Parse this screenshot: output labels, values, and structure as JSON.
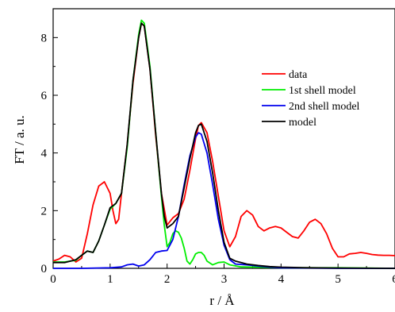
{
  "chart_data": {
    "type": "line",
    "xlabel": "r / Å",
    "ylabel": "FT / a. u.",
    "xlim": [
      0,
      6
    ],
    "ylim": [
      0,
      9
    ],
    "xticks": [
      "0",
      "1",
      "2",
      "3",
      "4",
      "5",
      "6"
    ],
    "yticks": [
      "0",
      "2",
      "4",
      "6",
      "8"
    ],
    "legend_position": "top-right",
    "series": [
      {
        "name": "data",
        "color": "#ff0000",
        "x": [
          0,
          0.1,
          0.2,
          0.3,
          0.4,
          0.5,
          0.6,
          0.7,
          0.8,
          0.9,
          1.0,
          1.05,
          1.1,
          1.15,
          1.2,
          1.3,
          1.4,
          1.5,
          1.55,
          1.6,
          1.7,
          1.8,
          1.9,
          2.0,
          2.1,
          2.2,
          2.3,
          2.4,
          2.5,
          2.55,
          2.6,
          2.7,
          2.8,
          2.9,
          3.0,
          3.1,
          3.2,
          3.3,
          3.4,
          3.5,
          3.6,
          3.7,
          3.8,
          3.9,
          4.0,
          4.1,
          4.2,
          4.3,
          4.4,
          4.5,
          4.6,
          4.7,
          4.8,
          4.9,
          5.0,
          5.1,
          5.2,
          5.3,
          5.4,
          5.5,
          5.6,
          5.7,
          5.8,
          5.9,
          6.0
        ],
        "y": [
          0.25,
          0.32,
          0.45,
          0.4,
          0.22,
          0.35,
          1.2,
          2.2,
          2.85,
          3.0,
          2.6,
          2.0,
          1.55,
          1.7,
          2.6,
          4.3,
          6.4,
          8.0,
          8.5,
          8.4,
          6.9,
          4.6,
          2.6,
          1.5,
          1.75,
          1.9,
          2.4,
          3.4,
          4.5,
          4.95,
          5.05,
          4.7,
          3.7,
          2.5,
          1.3,
          0.75,
          1.1,
          1.8,
          2.0,
          1.85,
          1.45,
          1.3,
          1.4,
          1.45,
          1.4,
          1.25,
          1.1,
          1.05,
          1.3,
          1.6,
          1.7,
          1.55,
          1.2,
          0.7,
          0.4,
          0.4,
          0.5,
          0.52,
          0.55,
          0.52,
          0.48,
          0.46,
          0.45,
          0.45,
          0.44
        ]
      },
      {
        "name": "1st shell model",
        "color": "#00ee00",
        "x": [
          0,
          0.2,
          0.4,
          0.5,
          0.6,
          0.7,
          0.8,
          0.9,
          1.0,
          1.1,
          1.2,
          1.3,
          1.4,
          1.5,
          1.55,
          1.6,
          1.7,
          1.8,
          1.9,
          1.95,
          2.0,
          2.05,
          2.1,
          2.15,
          2.2,
          2.25,
          2.3,
          2.35,
          2.4,
          2.45,
          2.5,
          2.55,
          2.6,
          2.65,
          2.7,
          2.8,
          2.9,
          3.0,
          3.1,
          3.3,
          3.6,
          4.0,
          5.0,
          6.0
        ],
        "y": [
          0.22,
          0.22,
          0.28,
          0.45,
          0.6,
          0.55,
          0.95,
          1.5,
          2.05,
          2.25,
          2.6,
          4.2,
          6.5,
          8.1,
          8.6,
          8.5,
          7.0,
          4.7,
          2.5,
          1.5,
          0.75,
          0.9,
          1.2,
          1.3,
          1.25,
          1.05,
          0.7,
          0.25,
          0.15,
          0.3,
          0.5,
          0.55,
          0.55,
          0.45,
          0.25,
          0.12,
          0.2,
          0.22,
          0.12,
          0.05,
          0.04,
          0.02,
          0.02,
          0.0
        ]
      },
      {
        "name": "2nd shell model",
        "color": "#0000ee",
        "x": [
          0,
          0.5,
          1.0,
          1.2,
          1.3,
          1.4,
          1.5,
          1.6,
          1.7,
          1.8,
          1.9,
          2.0,
          2.1,
          2.2,
          2.3,
          2.4,
          2.5,
          2.55,
          2.6,
          2.7,
          2.8,
          2.9,
          3.0,
          3.1,
          3.2,
          3.4,
          3.6,
          3.8,
          4.0,
          4.5,
          5.0,
          6.0
        ],
        "y": [
          0.0,
          0.0,
          0.02,
          0.05,
          0.12,
          0.15,
          0.08,
          0.12,
          0.3,
          0.55,
          0.6,
          0.62,
          1.0,
          1.8,
          2.9,
          3.9,
          4.55,
          4.7,
          4.65,
          4.0,
          2.9,
          1.7,
          0.8,
          0.3,
          0.15,
          0.12,
          0.08,
          0.04,
          0.02,
          0.01,
          0.0,
          0.0
        ]
      },
      {
        "name": "model",
        "color": "#000000",
        "x": [
          0,
          0.2,
          0.4,
          0.5,
          0.6,
          0.7,
          0.8,
          0.9,
          1.0,
          1.1,
          1.2,
          1.3,
          1.4,
          1.5,
          1.55,
          1.6,
          1.7,
          1.8,
          1.9,
          1.95,
          2.0,
          2.1,
          2.2,
          2.3,
          2.4,
          2.5,
          2.55,
          2.6,
          2.7,
          2.8,
          2.9,
          3.0,
          3.1,
          3.2,
          3.4,
          3.6,
          3.8,
          4.0,
          4.5,
          5.0,
          6.0
        ],
        "y": [
          0.2,
          0.2,
          0.3,
          0.45,
          0.6,
          0.55,
          0.95,
          1.5,
          2.1,
          2.25,
          2.6,
          4.3,
          6.5,
          8.0,
          8.5,
          8.4,
          6.9,
          4.7,
          2.6,
          1.8,
          1.4,
          1.55,
          1.8,
          2.8,
          3.8,
          4.7,
          4.95,
          5.0,
          4.4,
          3.3,
          2.0,
          0.9,
          0.35,
          0.25,
          0.15,
          0.1,
          0.06,
          0.04,
          0.02,
          0.01,
          0.0
        ]
      }
    ]
  }
}
